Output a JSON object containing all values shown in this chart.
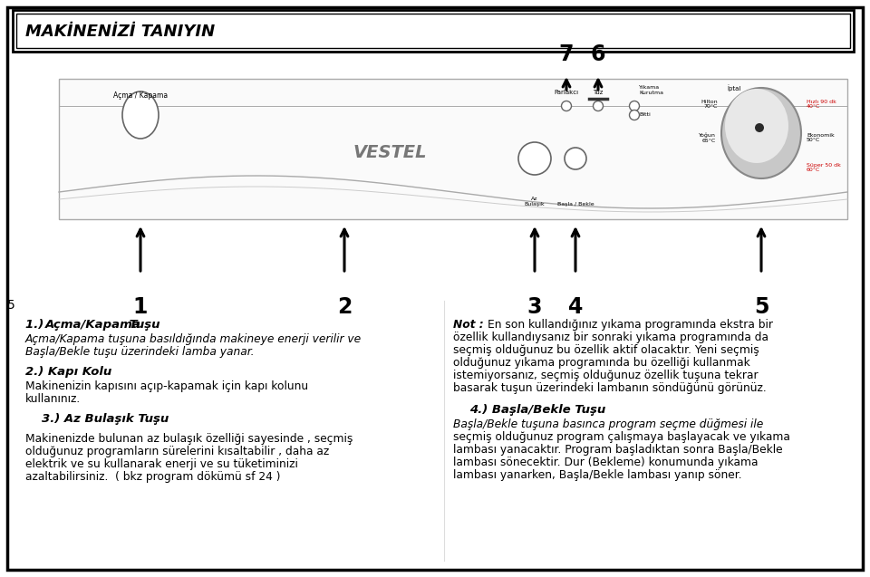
{
  "title": "MAKİNENİZİ TANIYIN",
  "bg_color": "#ffffff",
  "text_blocks_left": [
    {
      "heading": "1.) Açma/Kapama Tuşu",
      "body_italic": "Açma/Kapama",
      "body_pre": "",
      "body_post": " tuşuna basıldığında makineye enerji verilir ve\n",
      "body2_italic": "Başla/Bekle",
      "body2_post": " tuşu üzerindeki lamba yanar."
    },
    {
      "heading": "2.) Kapı Kolu",
      "body": "Makinenizin kapısını açıp-kapamak için kapı kolunu\nkullanınız."
    },
    {
      "heading": "3.) Az Bulaşık Tuşu",
      "body": "Makinenizde bulunan az bulaşık özelliği sayesinde , seçmiş\nolduğunuz programların sürelerini kısaltabilir , daha az\nelektrik ve su kullanarak enerji ve su tüketiminizi\nazaltabilirsiniz.  ( bkz program dökümü sf 24 )"
    }
  ],
  "text_blocks_right": [
    {
      "heading_bold": "Not :",
      "body": " En son kullandığınız yıkama programında ekstra bir\nözellik kullandıysanız bir sonraki yıkama programında da\nseçmiş olduğunuz bu özellik aktif olacaktır. Yeni seçmiş\nolduğunuz yıkama programında bu özelliği kullanmak\nistemiyorsanız, seçmiş olduğunuz özellik tuşuna tekrar\nbasarak tuşun üzerindeki lambanın söndüğünü görünüz."
    },
    {
      "heading": "4.) Başla/Bekle Tuşu",
      "body_italic": "Başla/Bekle",
      "body_post": " tuşuna basınca program seçme düğmesi ile\nseçmiş olduğunuz program çalışmaya başlayacak ve yıkama\nlambası yanacaktır. Program başladıktan sonra ",
      "body2_italic": "Başla/Bekle",
      "body2_post": "\nlambası sönecektir. Dur (Bekleme) konumunda yıkama\nlambası yanarken, ",
      "body3_italic": "Başla/Bekle",
      "body3_post": " lambası yanıp söner."
    }
  ]
}
